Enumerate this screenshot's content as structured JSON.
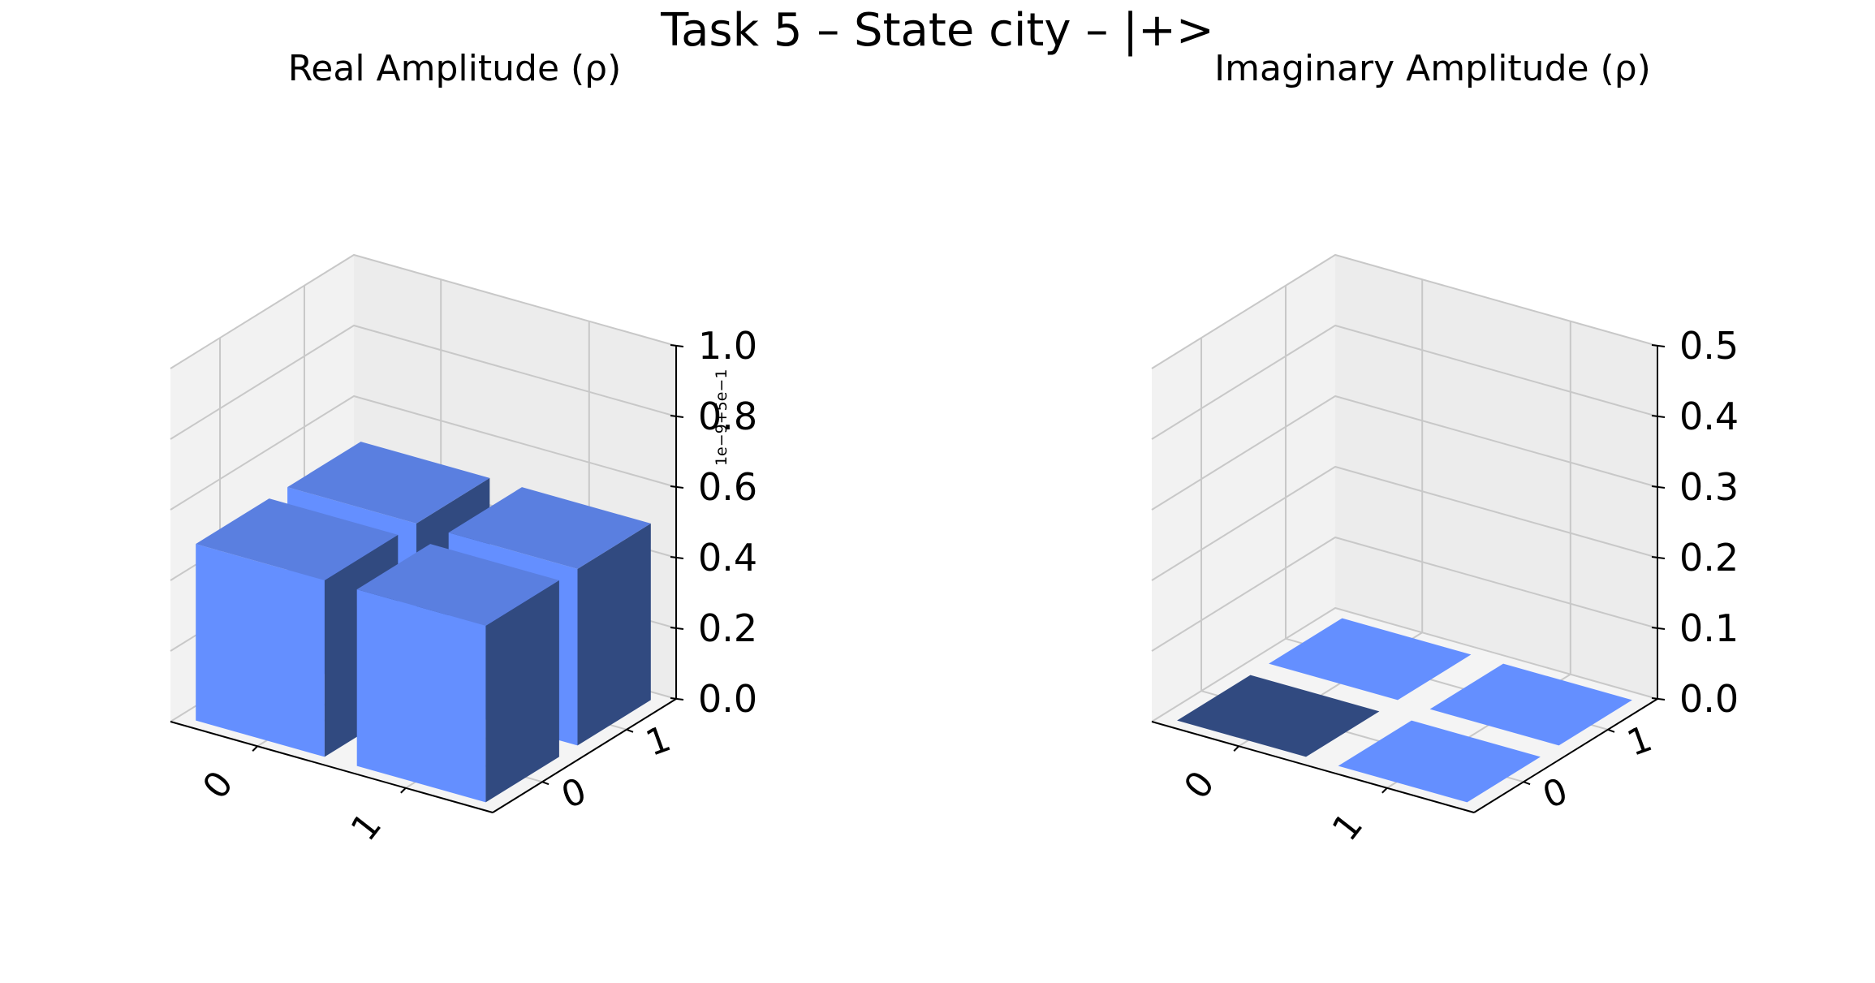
{
  "figure": {
    "title": "Task 5 – State city – |+>"
  },
  "colors": {
    "bar_face": "#648fff",
    "bar_top": "#5a7fe0",
    "bar_side": "#314a80"
  },
  "chart_data": [
    {
      "type": "bar3d",
      "title": "Real Amplitude (ρ)",
      "x_ticks": [
        "0",
        "1"
      ],
      "y_ticks": [
        "0",
        "1"
      ],
      "z_ticks": [
        "0.0",
        "0.2",
        "0.4",
        "0.6",
        "0.8",
        "1.0"
      ],
      "zlim": [
        0,
        1.0
      ],
      "offset_text": "1e−9+5e−1",
      "bars": [
        {
          "row": "0",
          "col": "0",
          "value": 0.5
        },
        {
          "row": "0",
          "col": "1",
          "value": 0.5
        },
        {
          "row": "1",
          "col": "0",
          "value": 0.5
        },
        {
          "row": "1",
          "col": "1",
          "value": 0.5
        }
      ]
    },
    {
      "type": "bar3d",
      "title": "Imaginary Amplitude (ρ)",
      "x_ticks": [
        "0",
        "1"
      ],
      "y_ticks": [
        "0",
        "1"
      ],
      "z_ticks": [
        "0.0",
        "0.1",
        "0.2",
        "0.3",
        "0.4",
        "0.5"
      ],
      "zlim": [
        0,
        0.5
      ],
      "bars": [
        {
          "row": "0",
          "col": "0",
          "value": 0.0
        },
        {
          "row": "0",
          "col": "1",
          "value": 0.0
        },
        {
          "row": "1",
          "col": "0",
          "value": 0.0
        },
        {
          "row": "1",
          "col": "1",
          "value": 0.0
        }
      ]
    }
  ]
}
